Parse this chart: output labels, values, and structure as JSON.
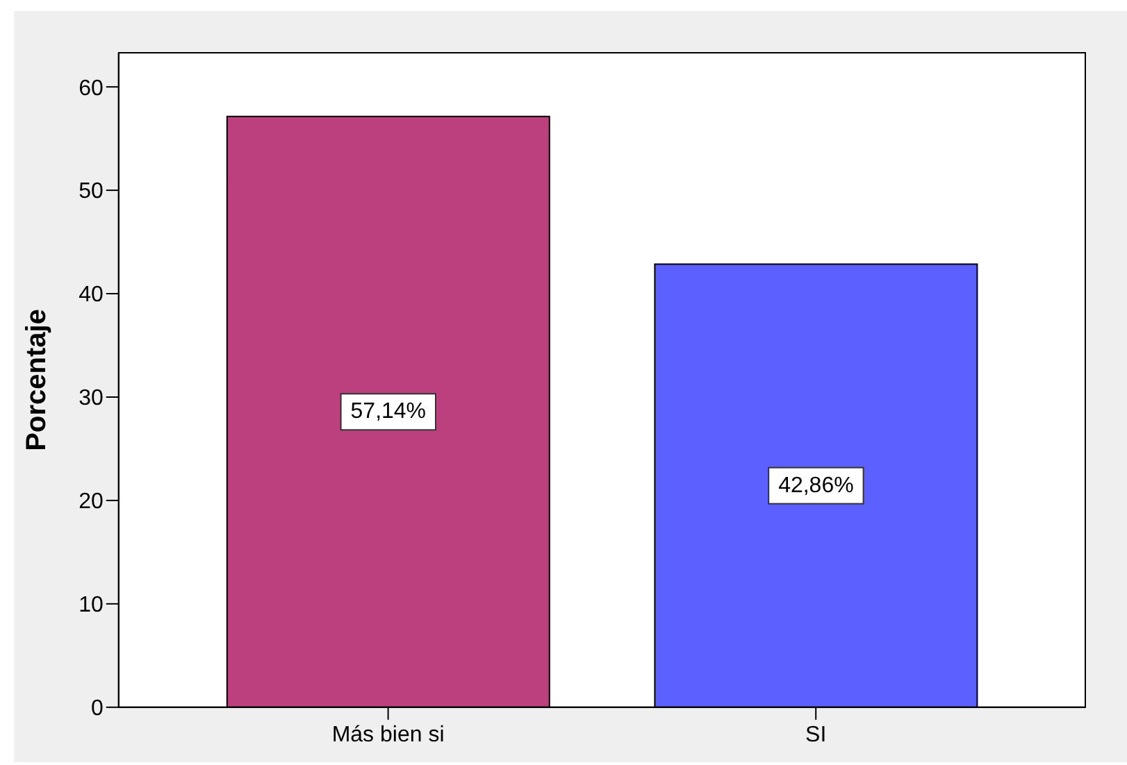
{
  "chart_data": {
    "type": "bar",
    "ylabel": "Porcentaje",
    "categories": [
      "Más bien si",
      "SI"
    ],
    "values": [
      57.14,
      42.86
    ],
    "colors": [
      "#bb407d",
      "#5c60ff"
    ],
    "value_labels": [
      "57,14%",
      "42,86%"
    ],
    "ylim": [
      0,
      63.3
    ],
    "yticks": [
      0,
      10,
      20,
      30,
      40,
      50,
      60
    ]
  }
}
